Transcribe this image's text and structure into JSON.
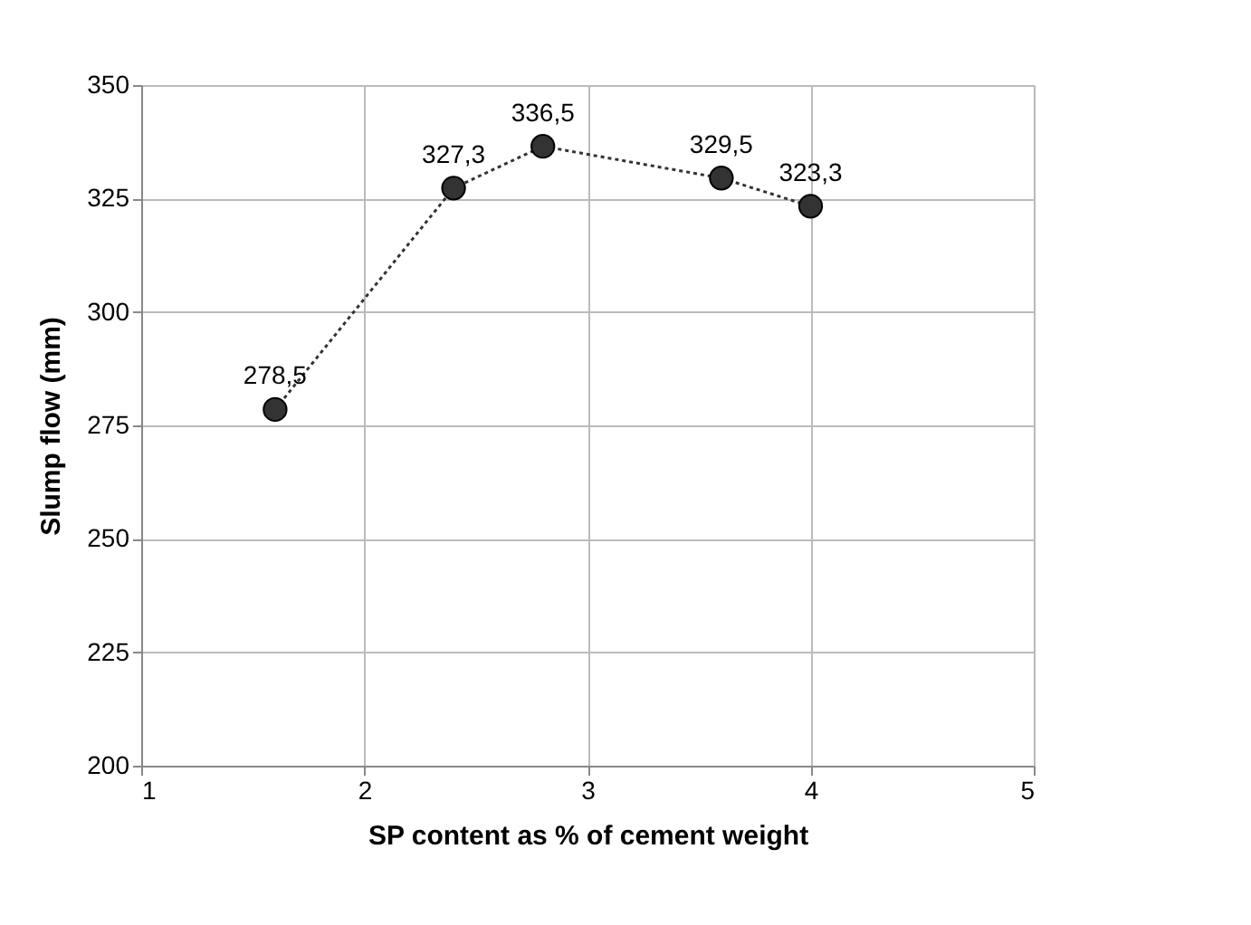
{
  "chart_data": {
    "type": "line",
    "xlabel": "SP content as % of cement weight",
    "ylabel": "Slump flow (mm)",
    "x": [
      1.6,
      2.4,
      2.8,
      3.6,
      4.0
    ],
    "series": [
      {
        "color": "#333333",
        "values": [
          278.5,
          327.3,
          336.5,
          329.5,
          323.3
        ],
        "value_labels": [
          "278,5",
          "327,3",
          "336,5",
          "329,5",
          "323,3"
        ]
      }
    ],
    "xlim": [
      1,
      5
    ],
    "xticks": [
      1,
      2,
      3,
      4,
      5
    ],
    "ylim": [
      200,
      350
    ],
    "yticks": [
      200,
      225,
      250,
      275,
      300,
      325,
      350
    ],
    "grid": true,
    "marker": "circle",
    "line_style": "dotted"
  }
}
